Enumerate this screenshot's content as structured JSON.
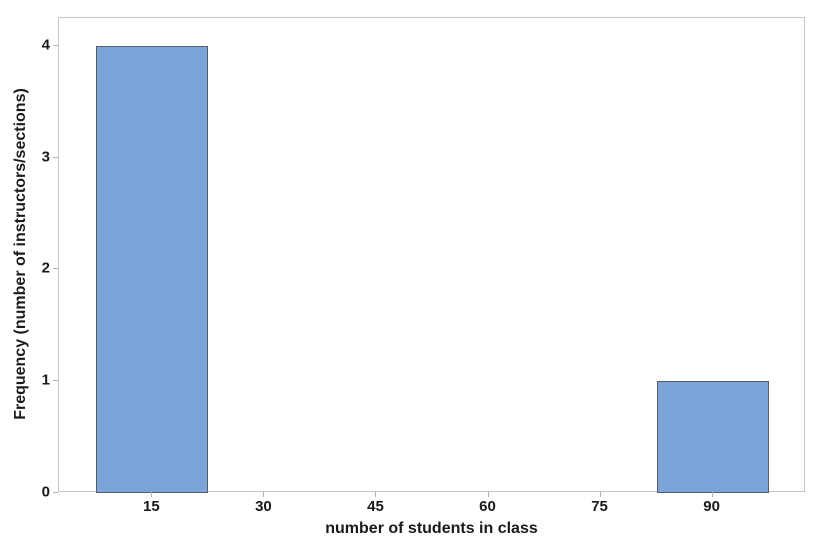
{
  "figure": {
    "background": "#ffffff"
  },
  "chart_data": {
    "type": "bar",
    "subtype": "histogram",
    "title": "",
    "xlabel": "number of students in class",
    "ylabel": "Frequency (number of instructors/sections)",
    "xlim": [
      2.5,
      102.5
    ],
    "ylim": [
      0,
      4.25
    ],
    "x_ticks": [
      15,
      30,
      45,
      60,
      75,
      90
    ],
    "y_ticks": [
      0,
      1,
      2,
      3,
      4
    ],
    "bin_width": 15,
    "bars": [
      {
        "center": 15,
        "x0": 7.5,
        "x1": 22.5,
        "frequency": 4
      },
      {
        "center": 90,
        "x0": 82.5,
        "x1": 97.5,
        "frequency": 1
      }
    ],
    "grid": false,
    "legend": null,
    "colors": {
      "bar_fill": "#7CA4D8",
      "bar_border": "#565E66",
      "frame": "#C6C6C6",
      "tick": "#B4B4B4",
      "text": "#1A1A1A"
    }
  }
}
